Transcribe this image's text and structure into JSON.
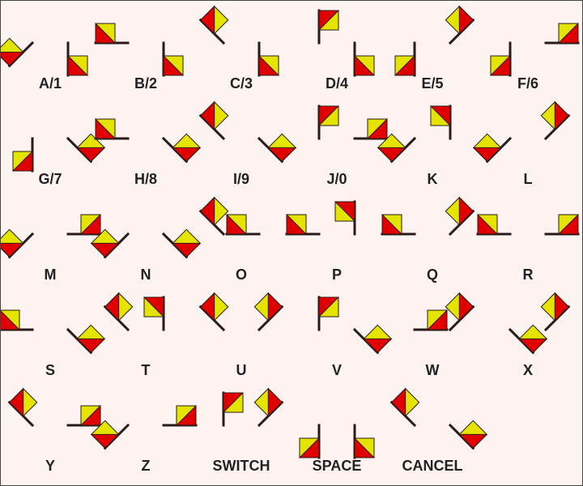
{
  "colors": {
    "background": "#fdf4f1",
    "border": "#444444",
    "pole": "#2a1a1a",
    "flag_red": "#e00000",
    "flag_yellow": "#e4e400",
    "label": "#222222"
  },
  "signals": [
    {
      "label": "A/1",
      "flags": [
        [
          "diag",
          "left"
        ],
        [
          "down",
          "right"
        ]
      ]
    },
    {
      "label": "B/2",
      "flags": [
        [
          "horiz",
          "left"
        ],
        [
          "down",
          "right"
        ]
      ]
    },
    {
      "label": "C/3",
      "flags": [
        [
          "hi",
          "left"
        ],
        [
          "down",
          "right"
        ]
      ]
    },
    {
      "label": "D/4",
      "flags": [
        [
          "up",
          "left"
        ],
        [
          "down",
          "right"
        ]
      ]
    },
    {
      "label": "E/5",
      "flags": [
        [
          "down",
          "left"
        ],
        [
          "hi",
          "right"
        ]
      ]
    },
    {
      "label": "F/6",
      "flags": [
        [
          "down",
          "left"
        ],
        [
          "horiz",
          "right"
        ]
      ]
    },
    {
      "label": "G/7",
      "flags": [
        [
          "down",
          "left"
        ],
        [
          "diag",
          "right"
        ]
      ]
    },
    {
      "label": "H/8",
      "flags": [
        [
          "horiz",
          "left"
        ],
        [
          "diag",
          "right"
        ]
      ]
    },
    {
      "label": "I/9",
      "flags": [
        [
          "hi",
          "left"
        ],
        [
          "diag",
          "right"
        ]
      ]
    },
    {
      "label": "J/0",
      "flags": [
        [
          "up",
          "left"
        ],
        [
          "horiz",
          "right"
        ]
      ]
    },
    {
      "label": "K",
      "flags": [
        [
          "diag",
          "left"
        ],
        [
          "up",
          "right"
        ]
      ]
    },
    {
      "label": "L",
      "flags": [
        [
          "diag",
          "left"
        ],
        [
          "hi",
          "right"
        ]
      ]
    },
    {
      "label": "M",
      "flags": [
        [
          "diag",
          "left"
        ],
        [
          "horiz",
          "right"
        ]
      ]
    },
    {
      "label": "N",
      "flags": [
        [
          "diag",
          "left"
        ],
        [
          "diag",
          "right"
        ]
      ]
    },
    {
      "label": "O",
      "flags": [
        [
          "hi",
          "left"
        ],
        [
          "horiz",
          "left"
        ]
      ]
    },
    {
      "label": "P",
      "flags": [
        [
          "horiz",
          "left"
        ],
        [
          "up",
          "right"
        ]
      ]
    },
    {
      "label": "Q",
      "flags": [
        [
          "horiz",
          "left"
        ],
        [
          "hi",
          "right"
        ]
      ]
    },
    {
      "label": "R",
      "flags": [
        [
          "horiz",
          "left"
        ],
        [
          "horiz",
          "right"
        ]
      ]
    },
    {
      "label": "S",
      "flags": [
        [
          "horiz",
          "left"
        ],
        [
          "diag",
          "right"
        ]
      ]
    },
    {
      "label": "T",
      "flags": [
        [
          "hi",
          "left"
        ],
        [
          "up",
          "right"
        ]
      ]
    },
    {
      "label": "U",
      "flags": [
        [
          "hi",
          "left"
        ],
        [
          "hi",
          "right"
        ]
      ]
    },
    {
      "label": "V",
      "flags": [
        [
          "up",
          "left"
        ],
        [
          "diag",
          "right"
        ]
      ]
    },
    {
      "label": "W",
      "flags": [
        [
          "horiz",
          "right"
        ],
        [
          "hi",
          "right"
        ]
      ]
    },
    {
      "label": "X",
      "flags": [
        [
          "diag",
          "right"
        ],
        [
          "hi",
          "right"
        ]
      ]
    },
    {
      "label": "Y",
      "flags": [
        [
          "hi",
          "left"
        ],
        [
          "horiz",
          "right"
        ]
      ]
    },
    {
      "label": "Z",
      "flags": [
        [
          "diag",
          "left"
        ],
        [
          "horiz",
          "right"
        ]
      ]
    },
    {
      "label": "SWITCH",
      "flags": [
        [
          "up",
          "left"
        ],
        [
          "hi",
          "right"
        ]
      ]
    },
    {
      "label": "SPACE",
      "flags": [
        [
          "down",
          "left"
        ],
        [
          "down",
          "right"
        ]
      ]
    },
    {
      "label": "CANCEL",
      "flags": [
        [
          "hi",
          "left"
        ],
        [
          "diag",
          "right"
        ]
      ]
    }
  ]
}
